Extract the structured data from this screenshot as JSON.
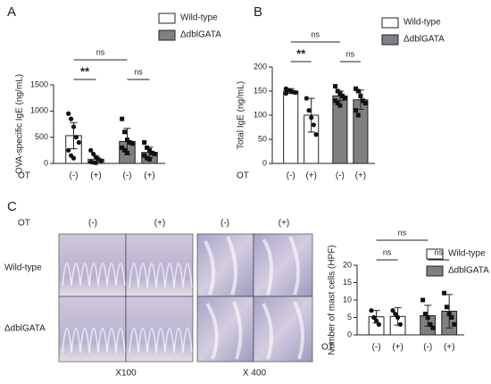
{
  "chart_data": [
    {
      "type": "bar",
      "panel": "A",
      "ylabel": "OVA-specific IgE (ng/mL)",
      "xlabel": "OT",
      "categories": [
        "(-)",
        "(+)",
        "(-)",
        "(+)"
      ],
      "ylim": [
        0,
        1500
      ],
      "yticks": [
        0,
        500,
        1000,
        1500
      ],
      "series": [
        {
          "name": "Wild-type",
          "color": "#ffffff",
          "marker": "circle",
          "values": [
            530,
            80,
            null,
            null
          ],
          "errors": [
            250,
            60,
            null,
            null
          ],
          "points": [
            [
              950,
              850,
              700,
              500,
              400,
              250,
              150,
              100
            ],
            [
              250,
              180,
              120,
              80,
              50,
              30,
              20,
              10
            ],
            null,
            null
          ]
        },
        {
          "name": "ΔdblGATA",
          "color": "#808080",
          "marker": "square",
          "values": [
            null,
            null,
            420,
            210
          ],
          "errors": [
            null,
            null,
            250,
            100
          ],
          "points": [
            null,
            null,
            [
              850,
              600,
              450,
              400,
              380,
              300,
              250,
              200
            ],
            [
              400,
              300,
              250,
              200,
              180,
              150,
              100,
              80
            ]
          ]
        }
      ],
      "annotations": [
        {
          "text": "**",
          "categories": [
            0,
            1
          ]
        },
        {
          "text": "ns",
          "categories": [
            2,
            3
          ]
        },
        {
          "text": "ns",
          "categories": [
            0,
            2
          ]
        }
      ]
    },
    {
      "type": "bar",
      "panel": "B",
      "ylabel": "Total IgE (ng/mL)",
      "xlabel": "OT",
      "categories": [
        "(-)",
        "(+)",
        "(-)",
        "(+)"
      ],
      "ylim": [
        0,
        200
      ],
      "yticks": [
        0,
        50,
        100,
        150,
        200
      ],
      "series": [
        {
          "name": "Wild-type",
          "color": "#ffffff",
          "marker": "circle",
          "values": [
            150,
            100,
            null,
            null
          ],
          "errors": [
            5,
            35,
            null,
            null
          ],
          "points": [
            [
              155,
              152,
              150,
              148,
              147,
              145
            ],
            [
              135,
              110,
              95,
              80,
              60
            ],
            null,
            null
          ]
        },
        {
          "name": "ΔdblGATA",
          "color": "#808080",
          "marker": "square",
          "values": [
            null,
            null,
            140,
            132
          ],
          "errors": [
            null,
            null,
            10,
            20
          ],
          "points": [
            null,
            null,
            [
              160,
              150,
              145,
              140,
              135,
              130,
              125,
              120
            ],
            [
              155,
              150,
              140,
              130,
              125,
              110,
              100
            ]
          ]
        }
      ],
      "annotations": [
        {
          "text": "**",
          "categories": [
            0,
            1
          ]
        },
        {
          "text": "ns",
          "categories": [
            2,
            3
          ]
        },
        {
          "text": "ns",
          "categories": [
            0,
            2
          ]
        }
      ]
    },
    {
      "type": "bar",
      "panel": "C",
      "ylabel": "Number of mast cells (HPF)",
      "xlabel": "OT",
      "categories": [
        "(-)",
        "(+)",
        "(-)",
        "(+)"
      ],
      "ylim": [
        0,
        20
      ],
      "yticks": [
        0,
        5,
        10,
        15,
        20
      ],
      "series": [
        {
          "name": "Wild-type",
          "color": "#ffffff",
          "marker": "circle",
          "values": [
            5.2,
            5.3,
            null,
            null
          ],
          "errors": [
            1.8,
            2.5,
            null,
            null
          ],
          "points": [
            [
              7,
              5,
              4,
              3
            ],
            [
              7,
              6,
              5,
              3
            ],
            null,
            null
          ]
        },
        {
          "name": "ΔdblGATA",
          "color": "#808080",
          "marker": "square",
          "values": [
            null,
            null,
            5.5,
            6.8
          ],
          "errors": [
            null,
            null,
            3,
            4.8
          ],
          "points": [
            null,
            null,
            [
              10,
              6,
              5,
              3,
              2
            ],
            [
              12,
              8,
              6,
              5,
              3
            ]
          ]
        }
      ],
      "annotations": [
        {
          "text": "ns",
          "categories": [
            0,
            1
          ]
        },
        {
          "text": "ns",
          "categories": [
            2,
            3
          ]
        },
        {
          "text": "ns",
          "categories": [
            0,
            2
          ]
        }
      ]
    }
  ],
  "micrographs": {
    "treatment_label": "OT",
    "columns": [
      "(-)",
      "(+)",
      "(-)",
      "(+)"
    ],
    "rows": [
      "Wild-type",
      "ΔdblGATA"
    ],
    "magnifications": [
      "X100",
      "X 400"
    ]
  }
}
